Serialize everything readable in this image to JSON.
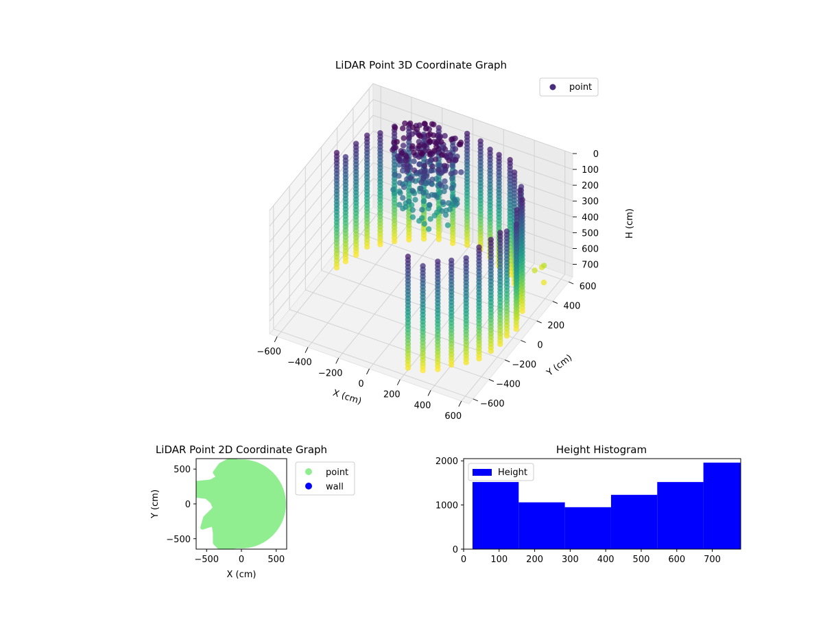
{
  "chart_data": [
    {
      "type": "scatter",
      "projection": "3d",
      "title": "LiDAR Point 3D Coordinate Graph",
      "xlabel": "X (cm)",
      "ylabel": "Y (cm)",
      "zlabel": "H (cm)",
      "xlim": [
        -650,
        650
      ],
      "ylim": [
        -650,
        650
      ],
      "zlim": [
        0,
        780
      ],
      "z_inverted": true,
      "xticks": [
        -600,
        -400,
        -200,
        0,
        200,
        400,
        600
      ],
      "yticks": [
        -600,
        -400,
        -200,
        0,
        200,
        400,
        600
      ],
      "zticks": [
        0,
        100,
        200,
        300,
        400,
        500,
        600,
        700
      ],
      "grid": true,
      "colormap": "viridis (by height)",
      "legend": {
        "entries": [
          "point"
        ],
        "placement": "top-right"
      },
      "series": [
        {
          "name": "point",
          "description": "Columns of points around a curved wall, radius ~550-600 cm",
          "wall_columns": {
            "radius": 580,
            "angle_start_deg": -70,
            "angle_end_deg": 175,
            "count": 30,
            "h_min": 0,
            "h_max": 780
          },
          "cluster": {
            "center": [
              -150,
              350
            ],
            "spread": 220,
            "h_min": 0,
            "h_max": 450,
            "count": 260
          },
          "outliers": [
            [
              470,
              520,
              720
            ],
            [
              510,
              560,
              700
            ],
            [
              540,
              500,
              760
            ],
            [
              480,
              590,
              740
            ]
          ]
        }
      ]
    },
    {
      "type": "scatter",
      "title": "LiDAR Point 2D Coordinate Graph",
      "xlabel": "X (cm)",
      "ylabel": "Y (cm)",
      "xlim": [
        -650,
        650
      ],
      "ylim": [
        -650,
        650
      ],
      "xticks": [
        -500,
        0,
        500
      ],
      "yticks": [
        -500,
        0,
        500
      ],
      "legend": {
        "entries": [
          "point",
          "wall"
        ],
        "placement": "outside-right"
      },
      "series": [
        {
          "name": "point",
          "color": "#90ee90",
          "shape": "filled disc of radius ~600 cm with notch on left side"
        },
        {
          "name": "wall",
          "color": "#0000ff",
          "points": []
        }
      ]
    },
    {
      "type": "bar",
      "subtype": "histogram",
      "title": "Height Histogram",
      "xlabel": "",
      "ylabel": "",
      "xlim": [
        0,
        780
      ],
      "ylim": [
        0,
        2050
      ],
      "xticks": [
        0,
        100,
        200,
        300,
        400,
        500,
        600,
        700
      ],
      "yticks": [
        0,
        1000,
        2000
      ],
      "color": "#0000ff",
      "legend": {
        "entries": [
          "Height"
        ],
        "placement": "top-left"
      },
      "bins": [
        {
          "x0": 25,
          "x1": 155,
          "value": 1520
        },
        {
          "x0": 155,
          "x1": 285,
          "value": 1060
        },
        {
          "x0": 285,
          "x1": 415,
          "value": 950
        },
        {
          "x0": 415,
          "x1": 545,
          "value": 1230
        },
        {
          "x0": 545,
          "x1": 675,
          "value": 1520
        },
        {
          "x0": 675,
          "x1": 780,
          "value": 1960
        }
      ]
    }
  ]
}
